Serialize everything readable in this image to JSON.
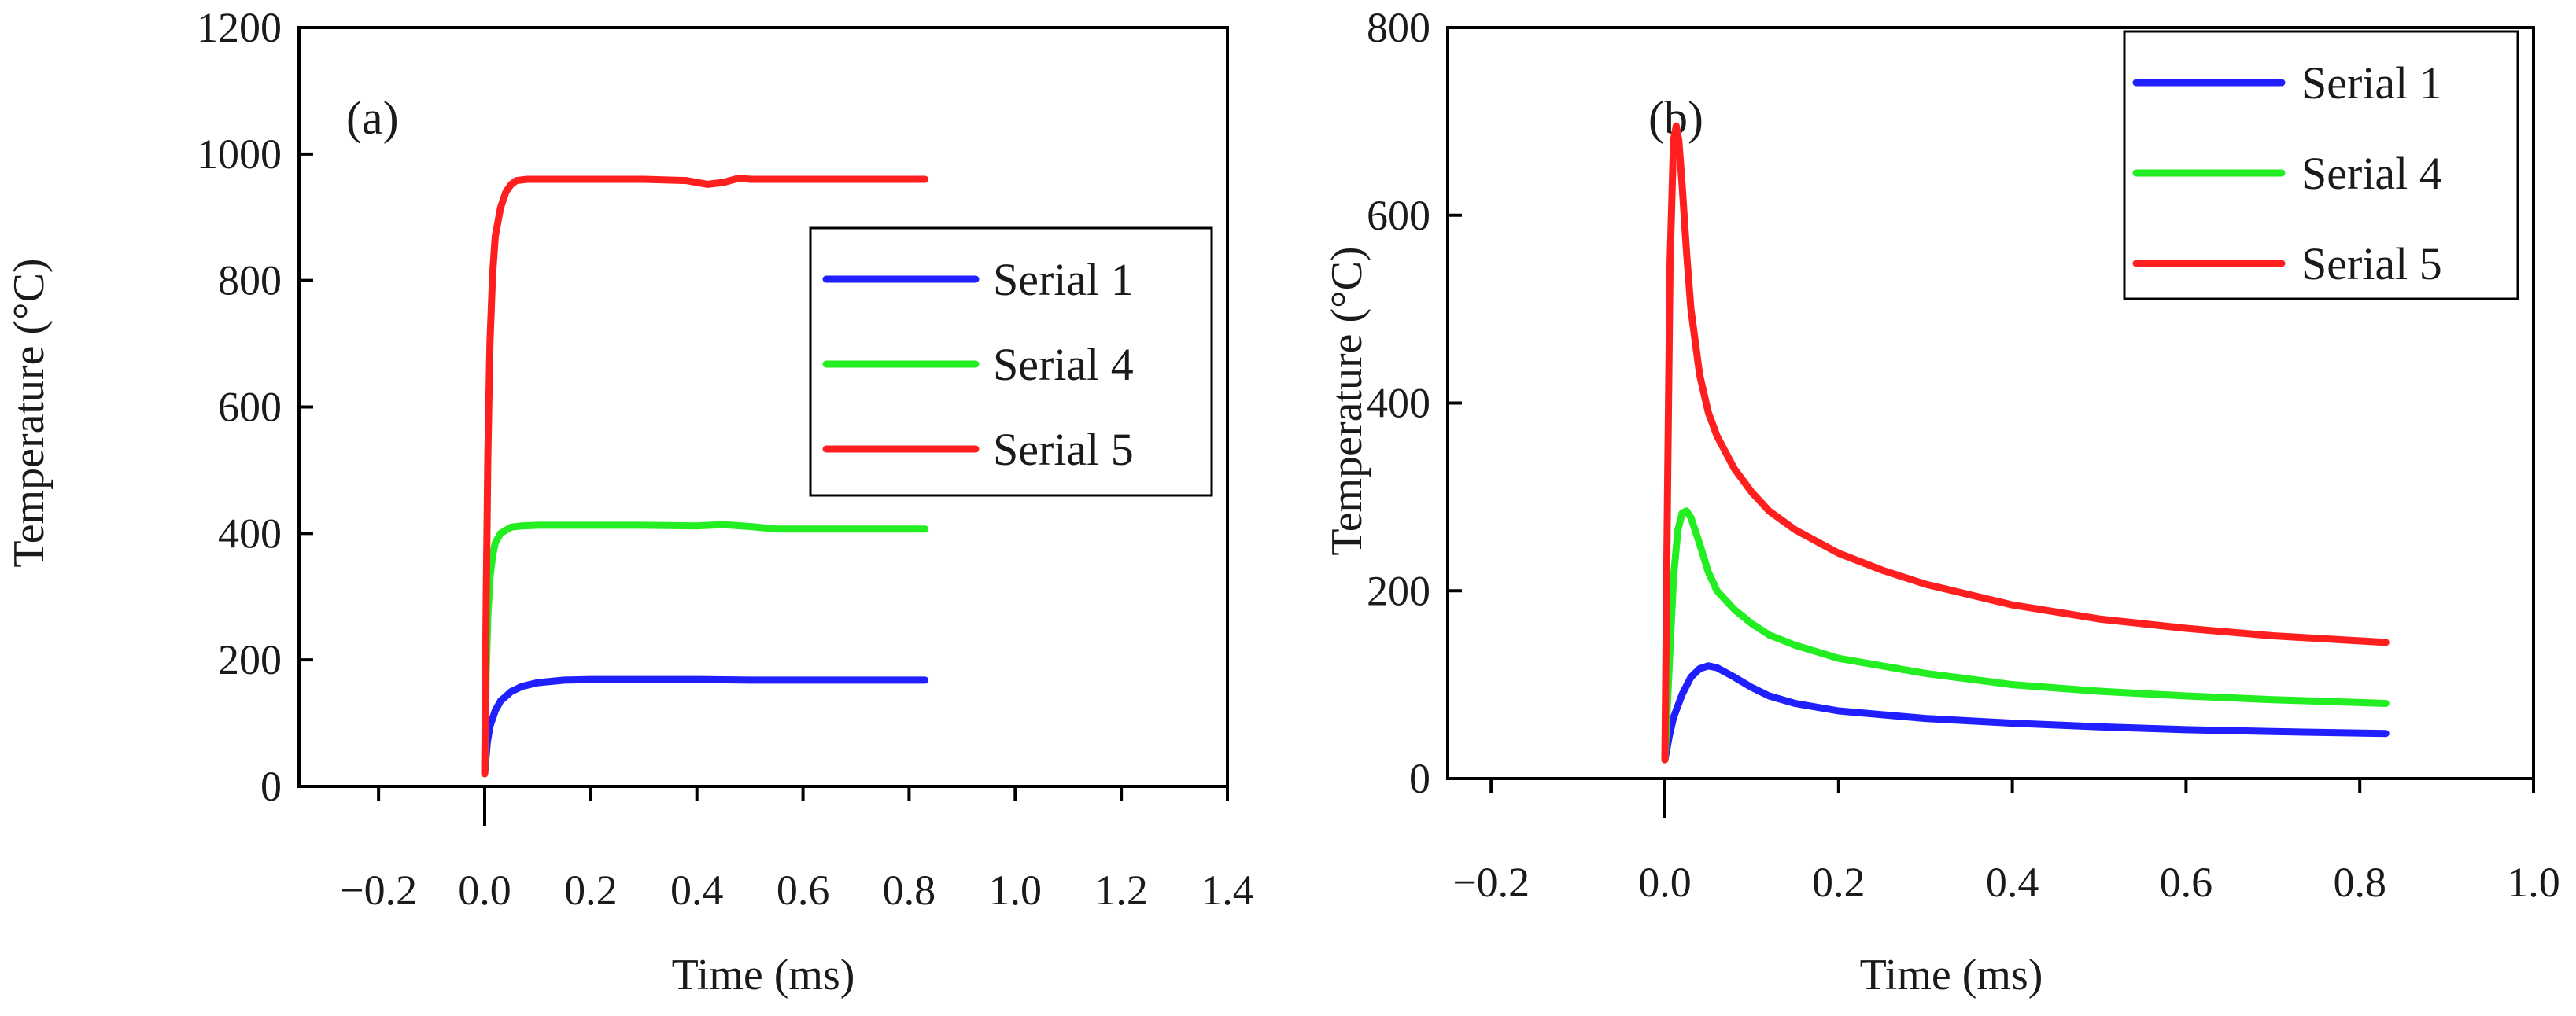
{
  "chart_data": [
    {
      "type": "line",
      "panel_label": "(a)",
      "xlabel": "Time (ms)",
      "ylabel": "Temperature (°C)",
      "xlim": [
        -0.35,
        1.4
      ],
      "ylim": [
        0,
        1200
      ],
      "xticks": [
        -0.2,
        0.0,
        0.2,
        0.4,
        0.6,
        0.8,
        1.0,
        1.2,
        1.4
      ],
      "xtick_labels": [
        "−0.2",
        "0.0",
        "0.2",
        "0.4",
        "0.6",
        "0.8",
        "1.0",
        "1.2",
        "1.4"
      ],
      "yticks": [
        0,
        200,
        400,
        600,
        800,
        1000,
        1200
      ],
      "ytick_labels": [
        "0",
        "200",
        "400",
        "600",
        "800",
        "1000",
        "1200"
      ],
      "legend_position": "middle-right",
      "series": [
        {
          "name": "Serial 1",
          "color": "#1f1fff",
          "x": [
            0.0,
            0.005,
            0.01,
            0.02,
            0.03,
            0.05,
            0.07,
            0.1,
            0.15,
            0.2,
            0.3,
            0.4,
            0.5,
            0.6,
            0.7,
            0.83
          ],
          "y": [
            20,
            70,
            95,
            120,
            135,
            150,
            158,
            164,
            168,
            169,
            169,
            169,
            168,
            168,
            168,
            168
          ]
        },
        {
          "name": "Serial 4",
          "color": "#22ee22",
          "x": [
            0.0,
            0.003,
            0.006,
            0.01,
            0.015,
            0.02,
            0.03,
            0.05,
            0.07,
            0.1,
            0.2,
            0.3,
            0.4,
            0.45,
            0.5,
            0.55,
            0.6,
            0.7,
            0.83
          ],
          "y": [
            20,
            180,
            270,
            330,
            365,
            385,
            400,
            410,
            412,
            413,
            413,
            413,
            412,
            414,
            411,
            407,
            407,
            407,
            407
          ]
        },
        {
          "name": "Serial 5",
          "color": "#ff1f1f",
          "x": [
            0.0,
            0.003,
            0.006,
            0.01,
            0.015,
            0.02,
            0.03,
            0.04,
            0.05,
            0.06,
            0.08,
            0.1,
            0.2,
            0.3,
            0.38,
            0.42,
            0.45,
            0.48,
            0.5,
            0.6,
            0.7,
            0.83
          ],
          "y": [
            20,
            300,
            520,
            700,
            810,
            870,
            915,
            940,
            952,
            958,
            960,
            960,
            960,
            960,
            958,
            952,
            955,
            962,
            960,
            960,
            960,
            960
          ]
        }
      ]
    },
    {
      "type": "line",
      "panel_label": "(b)",
      "xlabel": "Time (ms)",
      "ylabel": "Temperature (°C)",
      "xlim": [
        -0.25,
        1.0
      ],
      "ylim": [
        0,
        800
      ],
      "xticks": [
        -0.2,
        0.0,
        0.2,
        0.4,
        0.6,
        0.8,
        1.0
      ],
      "xtick_labels": [
        "−0.2",
        "0.0",
        "0.2",
        "0.4",
        "0.6",
        "0.8",
        "1.0"
      ],
      "yticks": [
        0,
        200,
        400,
        600,
        800
      ],
      "ytick_labels": [
        "0",
        "200",
        "400",
        "600",
        "800"
      ],
      "legend_position": "top-right",
      "series": [
        {
          "name": "Serial 1",
          "color": "#1f1fff",
          "x": [
            0.0,
            0.005,
            0.01,
            0.02,
            0.03,
            0.04,
            0.05,
            0.06,
            0.08,
            0.1,
            0.12,
            0.15,
            0.2,
            0.3,
            0.4,
            0.5,
            0.6,
            0.7,
            0.83
          ],
          "y": [
            20,
            45,
            65,
            90,
            108,
            117,
            120,
            118,
            108,
            97,
            88,
            80,
            72,
            64,
            59,
            55,
            52,
            50,
            48
          ]
        },
        {
          "name": "Serial 4",
          "color": "#22ee22",
          "x": [
            0.0,
            0.005,
            0.01,
            0.015,
            0.02,
            0.025,
            0.03,
            0.04,
            0.05,
            0.06,
            0.08,
            0.1,
            0.12,
            0.15,
            0.2,
            0.3,
            0.4,
            0.5,
            0.6,
            0.7,
            0.83
          ],
          "y": [
            20,
            120,
            215,
            265,
            283,
            285,
            278,
            250,
            220,
            200,
            180,
            165,
            153,
            142,
            128,
            112,
            100,
            93,
            88,
            84,
            80
          ]
        },
        {
          "name": "Serial 5",
          "color": "#ff1f1f",
          "x": [
            0.0,
            0.003,
            0.006,
            0.01,
            0.013,
            0.016,
            0.02,
            0.025,
            0.03,
            0.04,
            0.05,
            0.06,
            0.08,
            0.1,
            0.12,
            0.15,
            0.2,
            0.25,
            0.3,
            0.4,
            0.5,
            0.6,
            0.7,
            0.83
          ],
          "y": [
            20,
            300,
            550,
            680,
            695,
            680,
            630,
            560,
            500,
            430,
            390,
            365,
            330,
            305,
            285,
            265,
            240,
            222,
            207,
            185,
            170,
            160,
            152,
            145
          ]
        }
      ]
    }
  ]
}
